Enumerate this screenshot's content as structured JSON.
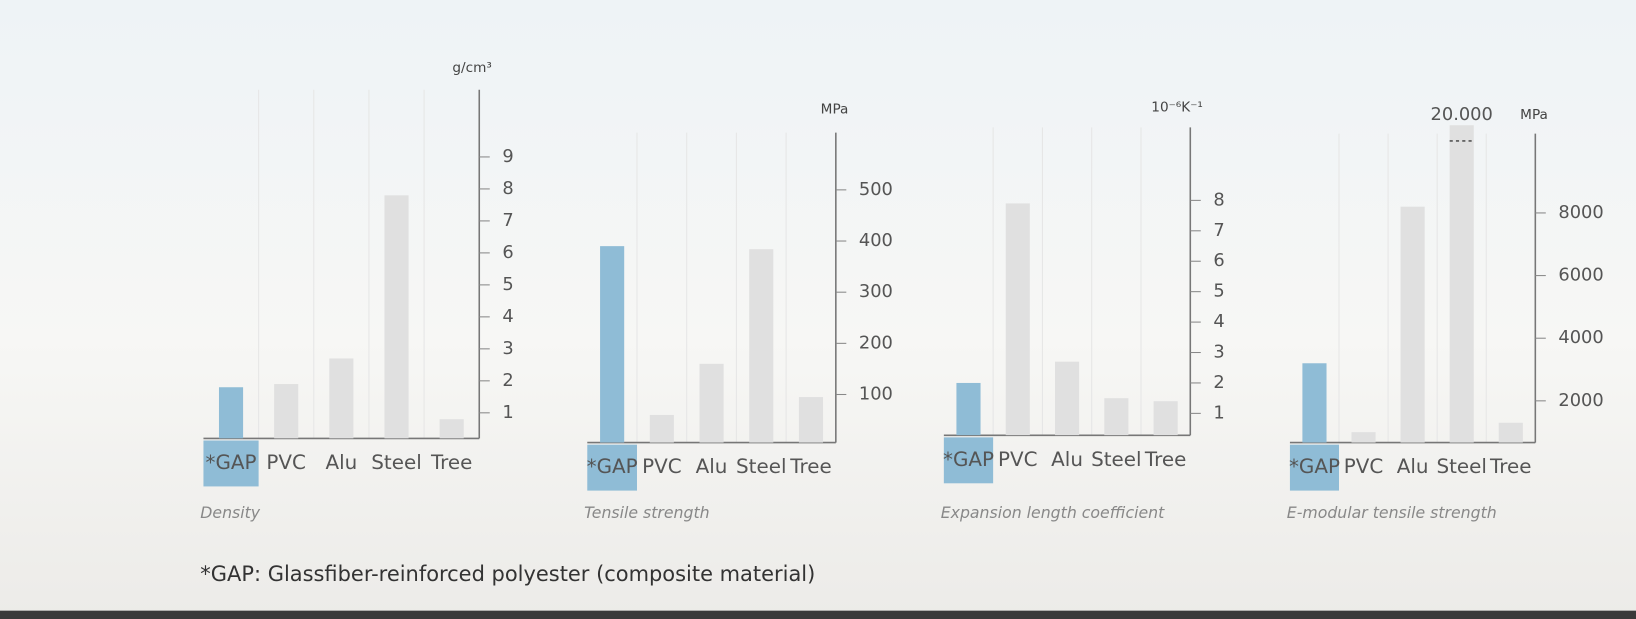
{
  "chart_data": [
    {
      "type": "bar",
      "title": "Density",
      "y_label": "g/cm³",
      "categories": [
        "*GAP",
        "PVC",
        "Alu",
        "Steel",
        "Tree"
      ],
      "values": [
        1.8,
        1.9,
        2.7,
        7.8,
        0.8
      ],
      "colors": [
        "#8fbcd6",
        "#e0e0e0",
        "#e0e0e0",
        "#e0e0e0",
        "#e0e0e0"
      ],
      "ylim": [
        0.2,
        11.1
      ],
      "yticks": [
        1,
        2,
        3,
        4,
        5,
        6,
        7,
        8,
        9
      ]
    },
    {
      "type": "bar",
      "title": "Tensile strength",
      "y_label": "MPa",
      "categories": [
        "*GAP",
        "PVC",
        "Alu",
        "Steel",
        "Tree"
      ],
      "values": [
        390,
        60,
        160,
        384,
        95
      ],
      "colors": [
        "#8fbcd6",
        "#e0e0e0",
        "#e0e0e0",
        "#e0e0e0",
        "#e0e0e0"
      ],
      "ylim": [
        6,
        612
      ],
      "yticks": [
        100,
        200,
        300,
        400,
        500
      ]
    },
    {
      "type": "bar",
      "title": "Expansion length coefficient",
      "y_label": "10⁻⁶K⁻¹",
      "categories": [
        "*GAP",
        "PVC",
        "Alu",
        "Steel",
        "Tree"
      ],
      "values": [
        2,
        7.9,
        2.7,
        1.5,
        1.4
      ],
      "colors": [
        "#8fbcd6",
        "#e0e0e0",
        "#e0e0e0",
        "#e0e0e0",
        "#e0e0e0"
      ],
      "ylim": [
        0.28,
        10.4
      ],
      "yticks": [
        1,
        2,
        3,
        4,
        5,
        6,
        7,
        8
      ]
    },
    {
      "type": "bar",
      "title": "E-modular tensile strength",
      "y_label": "MPa",
      "categories": [
        "*GAP",
        "PVC",
        "Alu",
        "Steel",
        "Tree"
      ],
      "values": [
        3200,
        1000,
        8200,
        20000,
        1300
      ],
      "value_labels": [
        null,
        null,
        null,
        "20.000",
        null
      ],
      "colors": [
        "#8fbcd6",
        "#e0e0e0",
        "#e0e0e0",
        "#e0e0e0",
        "#e0e0e0"
      ],
      "ylim": [
        667,
        10533
      ],
      "yticks": [
        2000,
        4000,
        6000,
        8000
      ]
    }
  ],
  "footnote": "*GAP: Glassfiber-reinforced polyester (composite material)"
}
